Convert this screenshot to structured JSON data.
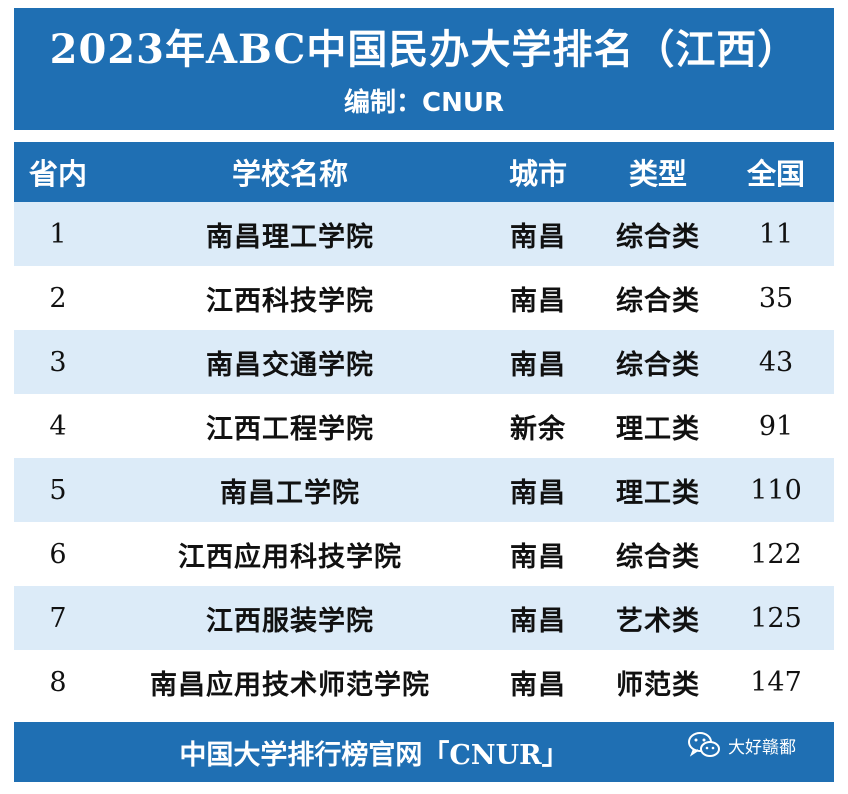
{
  "header": {
    "title": "2023年ABC中国民办大学排名（江西）",
    "subtitle": "编制：CNUR"
  },
  "columns": {
    "rank": "省内",
    "school": "学校名称",
    "city": "城市",
    "type": "类型",
    "national": "全国"
  },
  "rows": [
    {
      "rank": "1",
      "school": "南昌理工学院",
      "city": "南昌",
      "type": "综合类",
      "national": "11"
    },
    {
      "rank": "2",
      "school": "江西科技学院",
      "city": "南昌",
      "type": "综合类",
      "national": "35"
    },
    {
      "rank": "3",
      "school": "南昌交通学院",
      "city": "南昌",
      "type": "综合类",
      "national": "43"
    },
    {
      "rank": "4",
      "school": "江西工程学院",
      "city": "新余",
      "type": "理工类",
      "national": "91"
    },
    {
      "rank": "5",
      "school": "南昌工学院",
      "city": "南昌",
      "type": "理工类",
      "national": "110"
    },
    {
      "rank": "6",
      "school": "江西应用科技学院",
      "city": "南昌",
      "type": "综合类",
      "national": "122"
    },
    {
      "rank": "7",
      "school": "江西服装学院",
      "city": "南昌",
      "type": "艺术类",
      "national": "125"
    },
    {
      "rank": "8",
      "school": "南昌应用技术师范学院",
      "city": "南昌",
      "type": "师范类",
      "national": "147"
    }
  ],
  "footer": {
    "text": "中国大学排行榜官网「CNUR」",
    "watermark": "大好赣鄱",
    "watermark_icon": "wechat-icon"
  },
  "colors": {
    "header_blue": "#1f6fb3",
    "row_alt": "#dcebf8",
    "row_plain": "#ffffff"
  }
}
